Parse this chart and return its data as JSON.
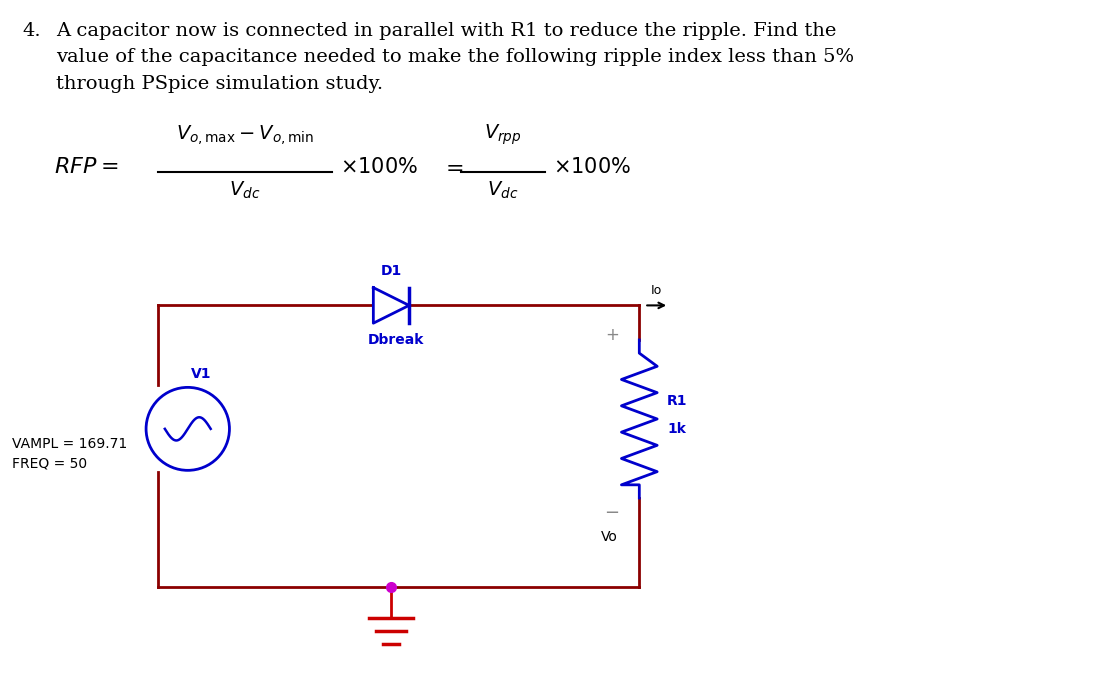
{
  "wire_color": "#8B0000",
  "diode_color": "#0000CC",
  "label_color": "#0000CC",
  "text_color": "#000000",
  "ground_color": "#CC0000",
  "vsource_color": "#0000CC",
  "node_color": "#CC00CC",
  "gray_color": "#888888",
  "bg_color": "#ffffff",
  "vampl": "VAMPL = 169.71",
  "freq": "FREQ = 50",
  "v1_label": "V1",
  "d1_label": "D1",
  "dbreak_label": "Dbreak",
  "r1_label": "R1",
  "r1_value": "1k",
  "vo_label": "Vo",
  "io_label": "Io"
}
